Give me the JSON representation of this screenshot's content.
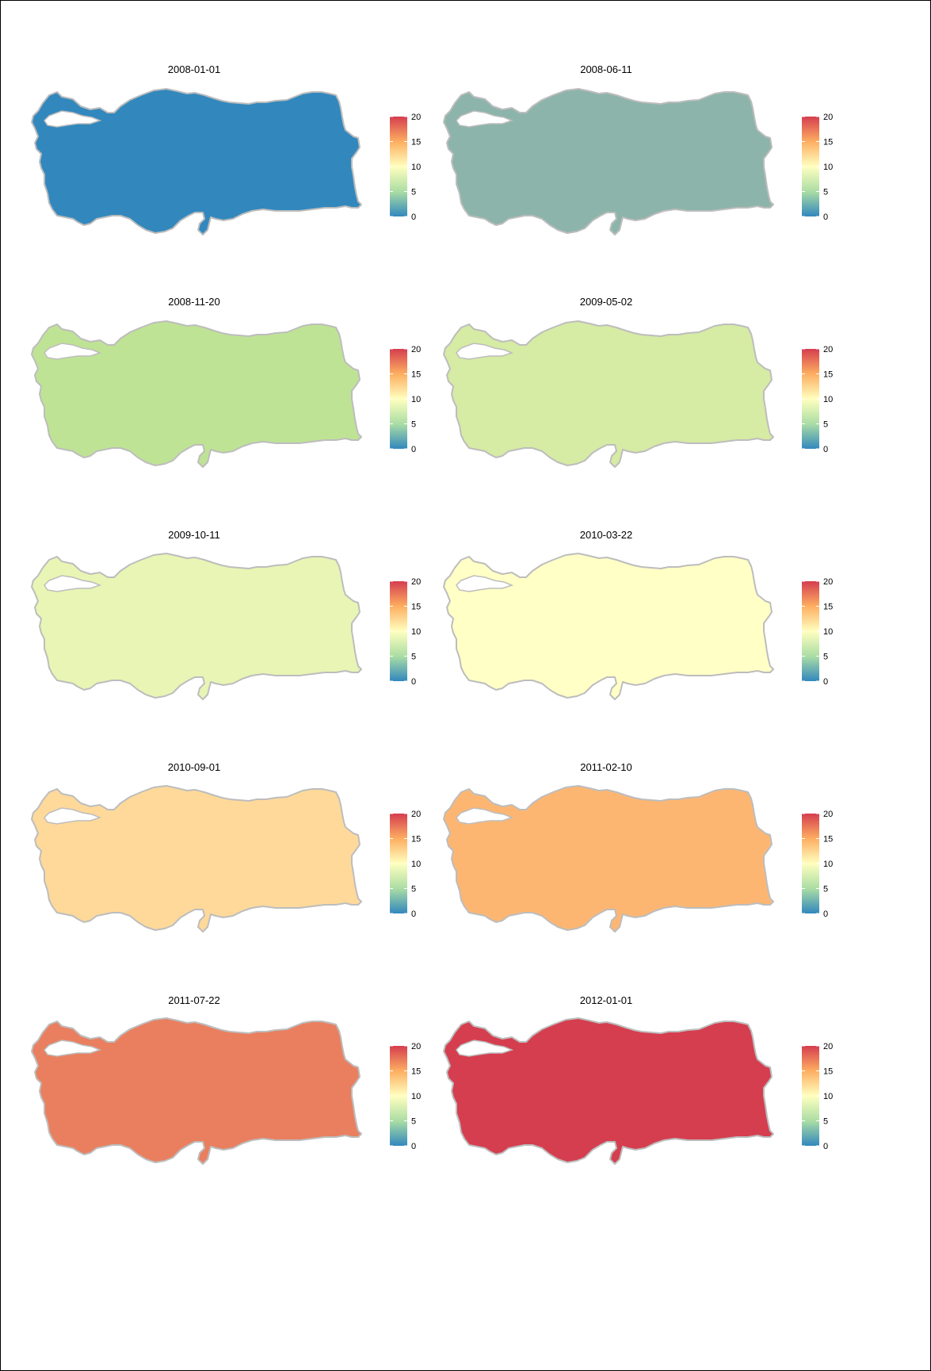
{
  "legend": {
    "ticks": [
      "20",
      "15",
      "10",
      "5",
      "0"
    ],
    "gradient_colors": [
      "#d53e4f",
      "#fdae61",
      "#ffffbf",
      "#abdda4",
      "#3288bd"
    ]
  },
  "outline_color": "#bdbdbd",
  "maps": [
    {
      "title": "2008-01-01",
      "fill": "#3288bd"
    },
    {
      "title": "2008-06-11",
      "fill": "#8cb4aa"
    },
    {
      "title": "2008-11-20",
      "fill": "#bfe394"
    },
    {
      "title": "2009-05-02",
      "fill": "#d6eba4"
    },
    {
      "title": "2009-10-11",
      "fill": "#e8f5b4"
    },
    {
      "title": "2010-03-22",
      "fill": "#ffffc6"
    },
    {
      "title": "2010-09-01",
      "fill": "#fed99a"
    },
    {
      "title": "2011-02-10",
      "fill": "#fdb672"
    },
    {
      "title": "2011-07-22",
      "fill": "#e97f5f"
    },
    {
      "title": "2012-01-01",
      "fill": "#d53e4f"
    }
  ]
}
